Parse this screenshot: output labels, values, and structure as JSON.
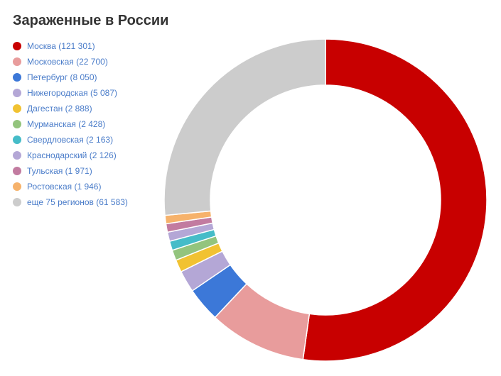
{
  "chart_data": {
    "type": "pie",
    "variant": "donut",
    "title": "Зараженные в России",
    "legend_position": "left",
    "slices": [
      {
        "label": "Москва (121 301)",
        "value": 121301,
        "color": "#c80000"
      },
      {
        "label": "Московская (22 700)",
        "value": 22700,
        "color": "#e89c9c"
      },
      {
        "label": "Петербург (8 050)",
        "value": 8050,
        "color": "#3c78d8"
      },
      {
        "label": "Нижегородская (5 087)",
        "value": 5087,
        "color": "#b4a7d6"
      },
      {
        "label": "Дагестан (2 888)",
        "value": 2888,
        "color": "#f1c232"
      },
      {
        "label": "Мурманская (2 428)",
        "value": 2428,
        "color": "#93c47d"
      },
      {
        "label": "Свердловская (2 163)",
        "value": 2163,
        "color": "#45bcc8"
      },
      {
        "label": "Краснодарский (2 126)",
        "value": 2126,
        "color": "#b4a7d6"
      },
      {
        "label": "Тульская (1 971)",
        "value": 1971,
        "color": "#c27ba0"
      },
      {
        "label": "Ростовская (1 946)",
        "value": 1946,
        "color": "#f6b26b"
      },
      {
        "label": "еще 75 регионов (61 583)",
        "value": 61583,
        "color": "#cccccc"
      }
    ]
  }
}
